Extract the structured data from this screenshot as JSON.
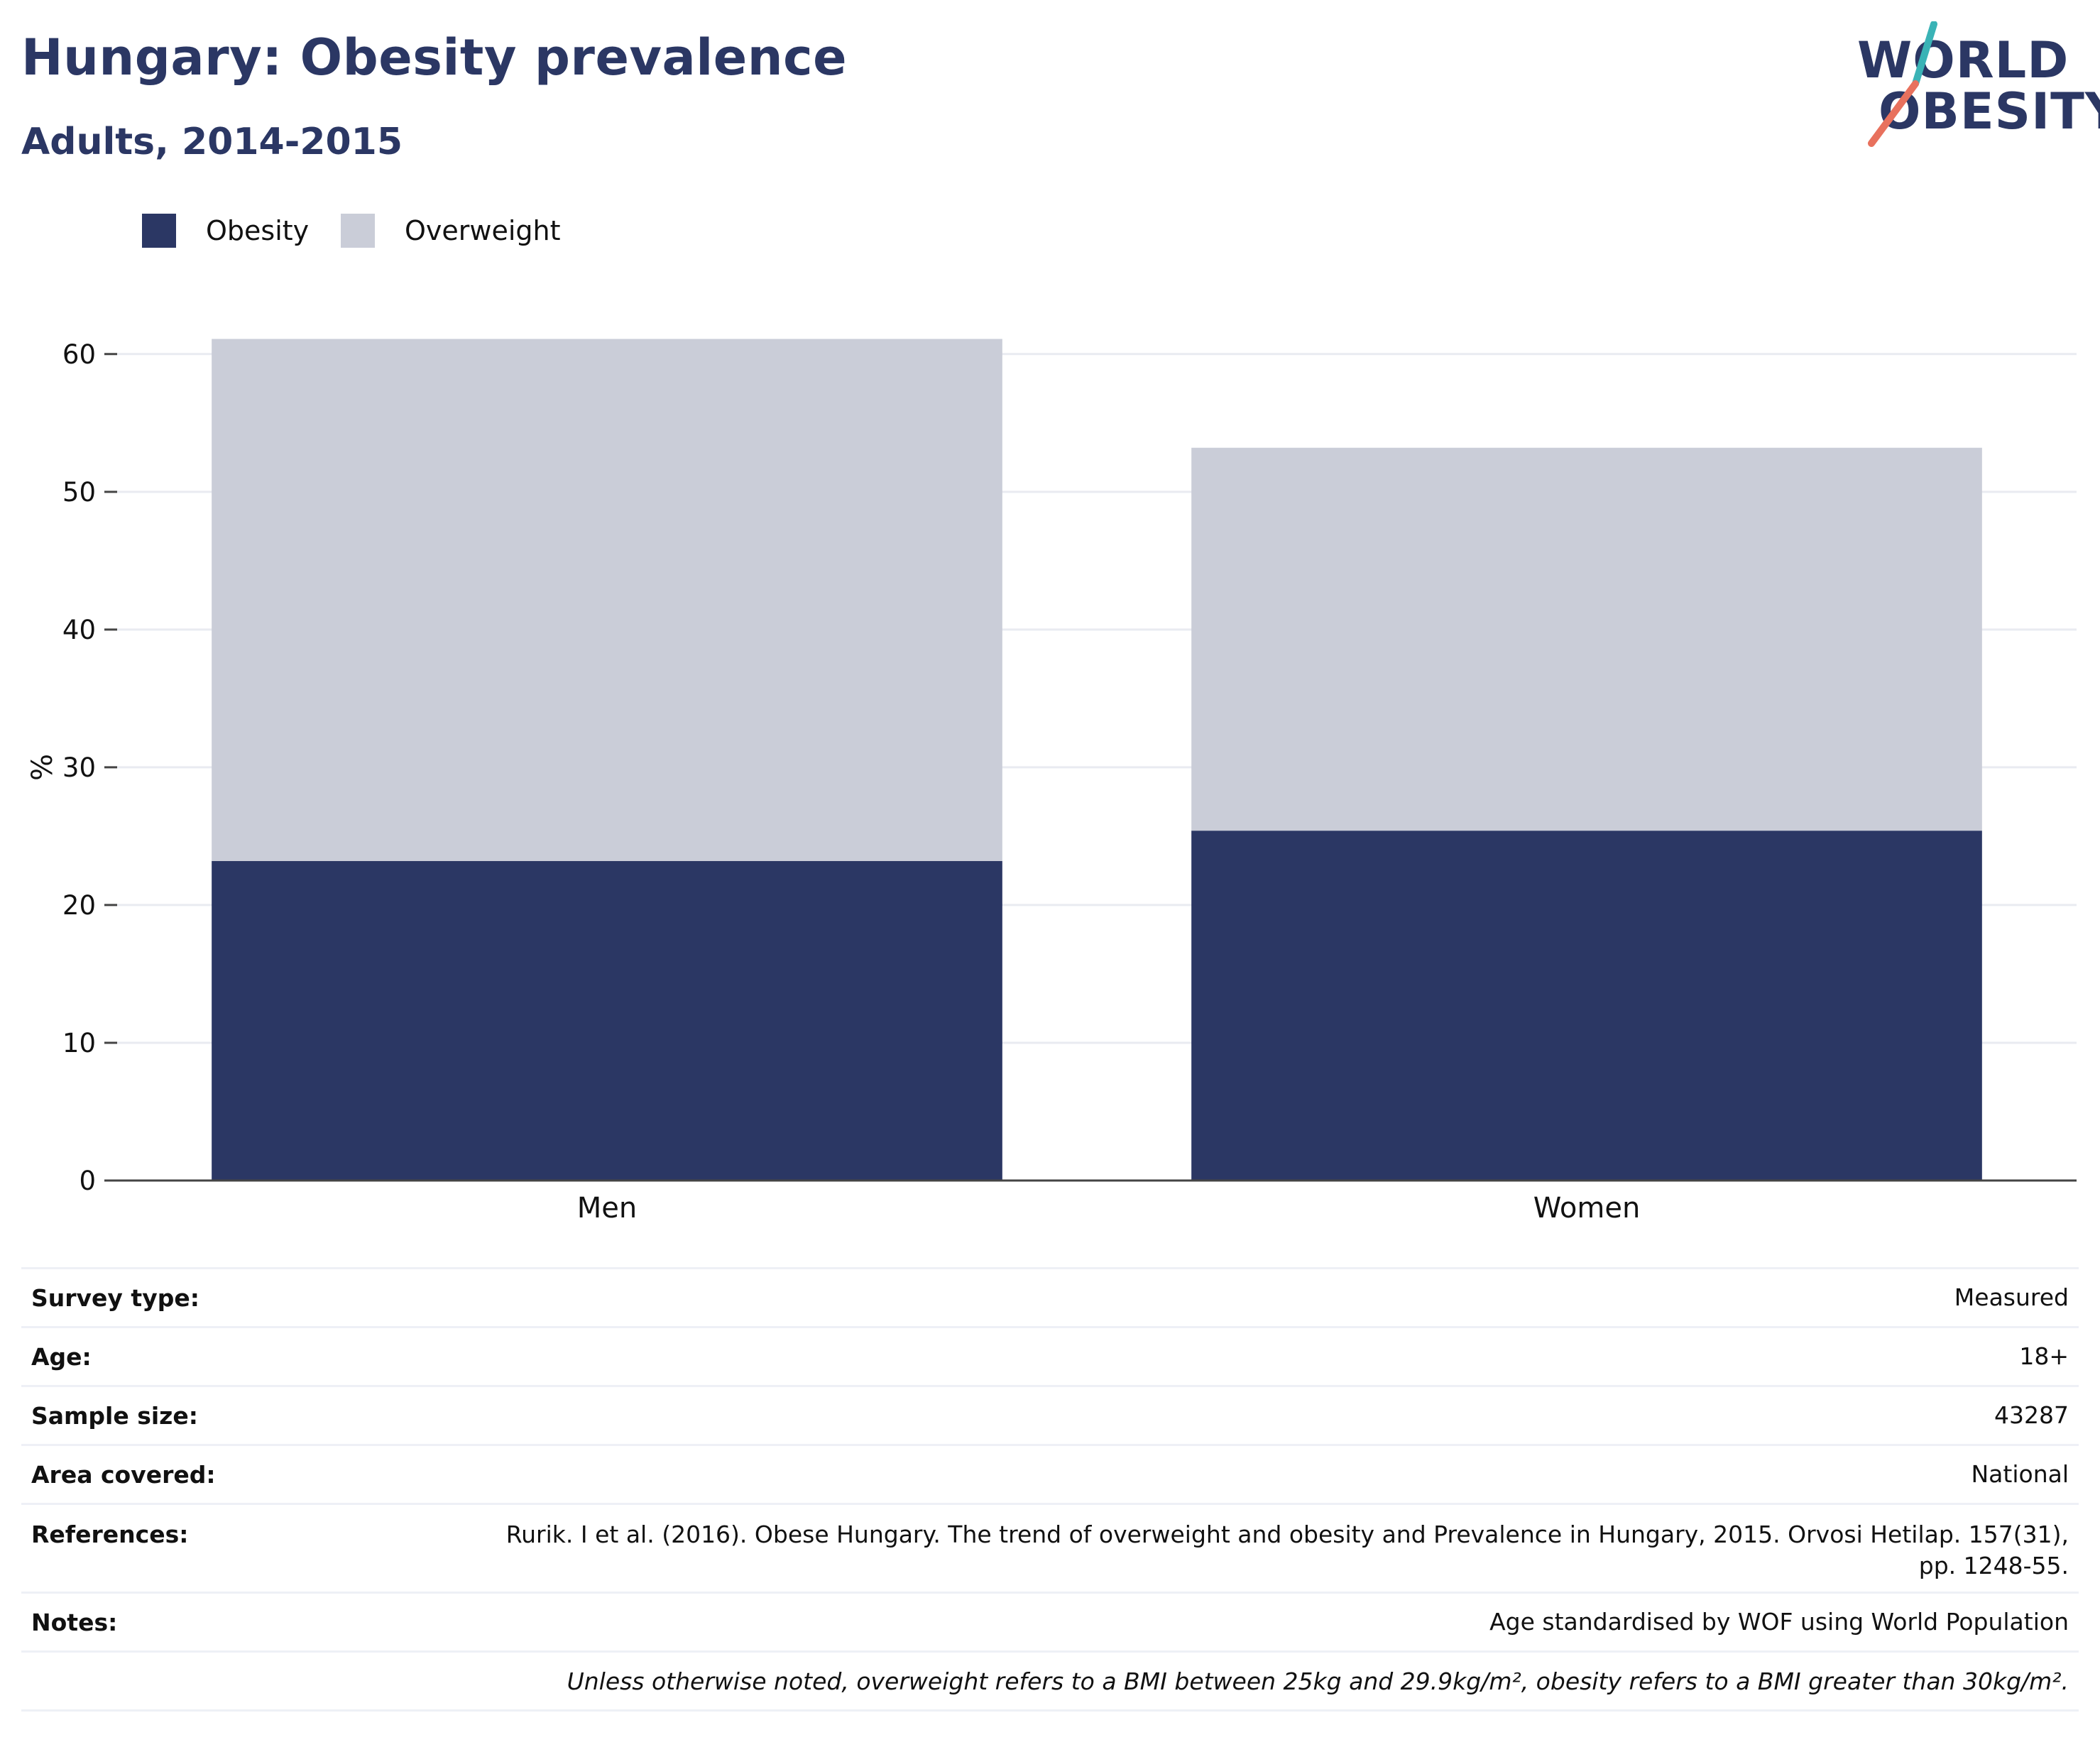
{
  "title": "Hungary: Obesity prevalence",
  "subtitle": "Adults, 2014-2015",
  "logo": {
    "line1": "WORLD",
    "line2": "OBESITY",
    "colors": {
      "navy": "#2b3764",
      "teal": "#3ab3b6",
      "coral": "#e8715d"
    }
  },
  "colors": {
    "obesity": "#2b3764",
    "overweight": "#cacdd8",
    "grid": "#e9ebf1",
    "axis": "#444444"
  },
  "chart_data": {
    "type": "bar",
    "stacked": true,
    "categories": [
      "Men",
      "Women"
    ],
    "series": [
      {
        "name": "Obesity",
        "values": [
          23.2,
          25.4
        ]
      },
      {
        "name": "Overweight",
        "values": [
          37.9,
          27.8
        ]
      }
    ],
    "title": "Hungary: Obesity prevalence",
    "subtitle": "Adults, 2014-2015",
    "xlabel": "",
    "ylabel": "%",
    "ylim": [
      0,
      62
    ],
    "yticks": [
      0,
      10,
      20,
      30,
      40,
      50,
      60
    ],
    "grid": true,
    "legend_position": "top-left"
  },
  "info": {
    "rows": [
      {
        "label": "Survey type:",
        "value": "Measured"
      },
      {
        "label": "Age:",
        "value": "18+"
      },
      {
        "label": "Sample size:",
        "value": "43287"
      },
      {
        "label": "Area covered:",
        "value": "National"
      },
      {
        "label": "References:",
        "value_line1": "Rurik. I et al. (2016). Obese Hungary. The trend of overweight and obesity and Prevalence in Hungary, 2015. Orvosi Hetilap. 157(31),",
        "value_line2": "pp. 1248-55."
      },
      {
        "label": "Notes:",
        "value": "Age standardised by WOF using World Population"
      }
    ],
    "footnote": "Unless otherwise noted, overweight refers to a BMI between 25kg and 29.9kg/m², obesity refers to a BMI greater than 30kg/m²."
  }
}
